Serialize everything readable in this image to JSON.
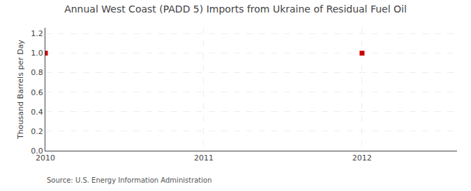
{
  "chart_data": {
    "type": "scatter",
    "title": "Annual West Coast (PADD 5) Imports from Ukraine of Residual Fuel Oil",
    "ylabel": "Thousand Barrels per Day",
    "source": "Source: U.S. Energy Information Administration",
    "x": [
      2010,
      2012
    ],
    "values": [
      1.0,
      1.0
    ],
    "color": "#CC0000",
    "marker": "square",
    "xlim": [
      2010.0,
      2012.6
    ],
    "ylim": [
      0.0,
      1.26
    ],
    "xticks": [
      2010,
      2011,
      2012
    ],
    "yticks": [
      {
        "value": 0.0,
        "label": "0.0"
      },
      0.2,
      0.4,
      0.6,
      0.8,
      {
        "value": 1.0,
        "label": "1.0"
      },
      1.2
    ],
    "grid": true
  }
}
